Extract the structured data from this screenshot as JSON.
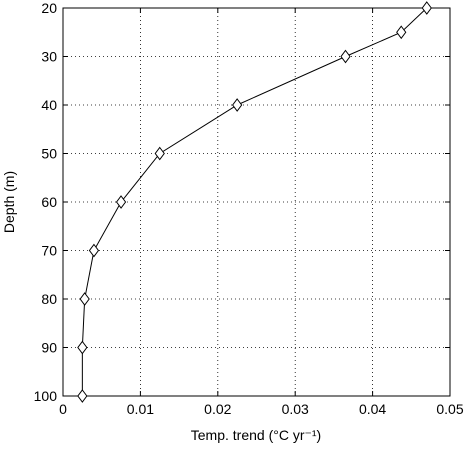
{
  "chart_data": {
    "type": "line",
    "xlabel": "Temp. trend (°C yr⁻¹)",
    "ylabel": "Depth (m)",
    "x": [
      0.047,
      0.0437,
      0.0365,
      0.0225,
      0.0125,
      0.0075,
      0.004,
      0.0028,
      0.0025,
      0.0025
    ],
    "values": [
      20,
      25,
      30,
      40,
      50,
      60,
      70,
      80,
      90,
      100
    ],
    "color": "#000000",
    "marker": "diamond",
    "xlim": [
      0,
      0.05
    ],
    "xticks": [
      0,
      0.01,
      0.02,
      0.03,
      0.04,
      0.05
    ],
    "ylim": [
      20,
      100
    ],
    "yticks": [
      20,
      30,
      40,
      50,
      60,
      70,
      80,
      90,
      100
    ],
    "y_inverted": true,
    "grid": true
  }
}
